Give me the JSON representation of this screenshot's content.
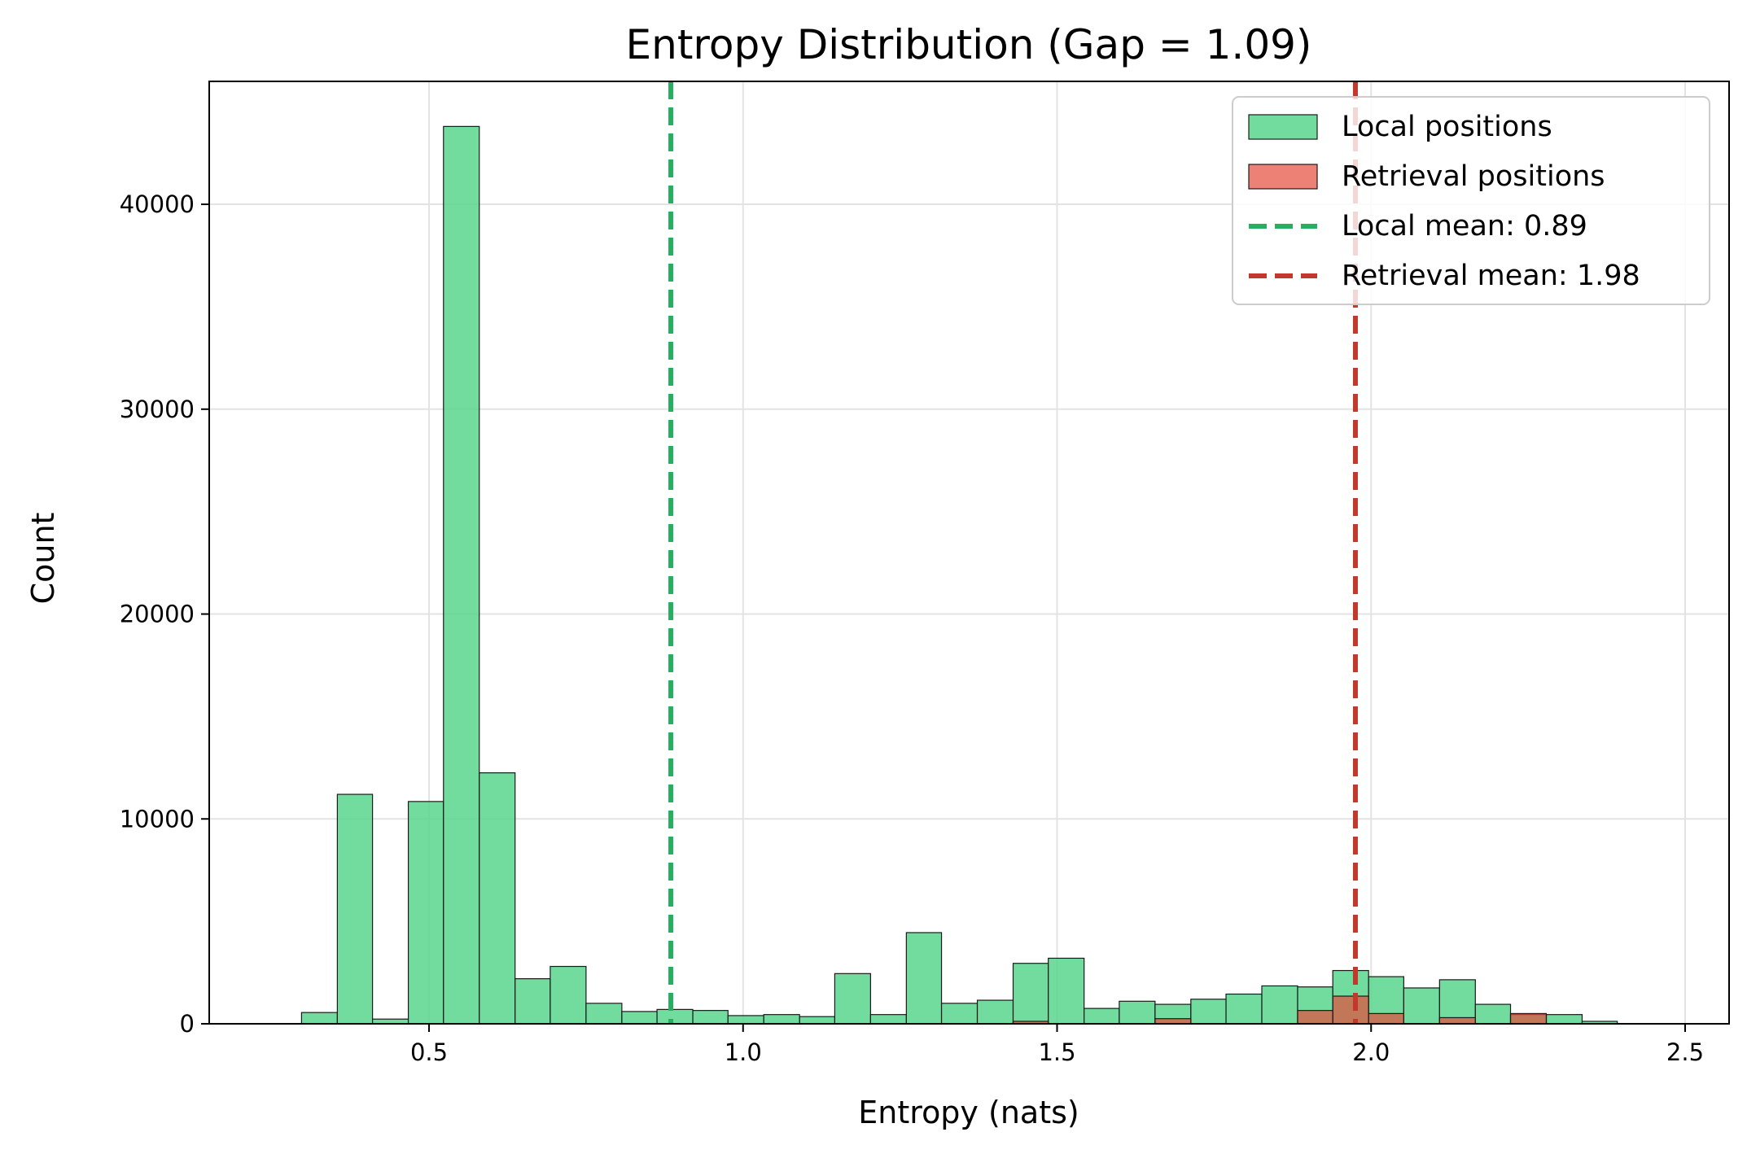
{
  "chart_data": {
    "type": "bar",
    "subtype": "overlaid-histogram",
    "title": "Entropy Distribution (Gap = 1.09)",
    "xlabel": "Entropy (nats)",
    "ylabel": "Count",
    "xlim": [
      0.15,
      2.57
    ],
    "ylim": [
      0,
      46000
    ],
    "xticks": [
      0.5,
      1.0,
      1.5,
      2.0,
      2.5
    ],
    "xtick_labels": [
      "0.5",
      "1.0",
      "1.5",
      "2.0",
      "2.5"
    ],
    "yticks": [
      0,
      10000,
      20000,
      30000,
      40000
    ],
    "ytick_labels": [
      "0",
      "10000",
      "20000",
      "30000",
      "40000"
    ],
    "grid": true,
    "legend_position": "top-right",
    "series": [
      {
        "name": "Local positions",
        "color": "#58d68d",
        "edge_color": "#1a1a1a",
        "bins": [
          {
            "x0": 0.297,
            "x1": 0.354,
            "count": 550
          },
          {
            "x0": 0.354,
            "x1": 0.41,
            "count": 11200
          },
          {
            "x0": 0.41,
            "x1": 0.467,
            "count": 230
          },
          {
            "x0": 0.467,
            "x1": 0.523,
            "count": 10850
          },
          {
            "x0": 0.523,
            "x1": 0.58,
            "count": 43800
          },
          {
            "x0": 0.58,
            "x1": 0.637,
            "count": 12250
          },
          {
            "x0": 0.637,
            "x1": 0.693,
            "count": 2200
          },
          {
            "x0": 0.693,
            "x1": 0.75,
            "count": 2800
          },
          {
            "x0": 0.75,
            "x1": 0.807,
            "count": 1000
          },
          {
            "x0": 0.807,
            "x1": 0.863,
            "count": 600
          },
          {
            "x0": 0.863,
            "x1": 0.92,
            "count": 700
          },
          {
            "x0": 0.92,
            "x1": 0.976,
            "count": 650
          },
          {
            "x0": 0.976,
            "x1": 1.033,
            "count": 400
          },
          {
            "x0": 1.033,
            "x1": 1.09,
            "count": 450
          },
          {
            "x0": 1.09,
            "x1": 1.146,
            "count": 350
          },
          {
            "x0": 1.146,
            "x1": 1.203,
            "count": 2450
          },
          {
            "x0": 1.203,
            "x1": 1.26,
            "count": 450
          },
          {
            "x0": 1.26,
            "x1": 1.316,
            "count": 4450
          },
          {
            "x0": 1.316,
            "x1": 1.373,
            "count": 1000
          },
          {
            "x0": 1.373,
            "x1": 1.43,
            "count": 1150
          },
          {
            "x0": 1.43,
            "x1": 1.486,
            "count": 2950
          },
          {
            "x0": 1.486,
            "x1": 1.543,
            "count": 3200
          },
          {
            "x0": 1.543,
            "x1": 1.599,
            "count": 750
          },
          {
            "x0": 1.599,
            "x1": 1.656,
            "count": 1100
          },
          {
            "x0": 1.656,
            "x1": 1.713,
            "count": 950
          },
          {
            "x0": 1.713,
            "x1": 1.769,
            "count": 1200
          },
          {
            "x0": 1.769,
            "x1": 1.826,
            "count": 1450
          },
          {
            "x0": 1.826,
            "x1": 1.883,
            "count": 1850
          },
          {
            "x0": 1.883,
            "x1": 1.939,
            "count": 1800
          },
          {
            "x0": 1.939,
            "x1": 1.996,
            "count": 2600
          },
          {
            "x0": 1.996,
            "x1": 2.052,
            "count": 2300
          },
          {
            "x0": 2.052,
            "x1": 2.109,
            "count": 1750
          },
          {
            "x0": 2.109,
            "x1": 2.166,
            "count": 2150
          },
          {
            "x0": 2.166,
            "x1": 2.222,
            "count": 950
          },
          {
            "x0": 2.222,
            "x1": 2.279,
            "count": 450
          },
          {
            "x0": 2.279,
            "x1": 2.336,
            "count": 450
          },
          {
            "x0": 2.336,
            "x1": 2.392,
            "count": 120
          }
        ]
      },
      {
        "name": "Retrieval positions",
        "color": "#e74c3c",
        "edge_color": "#1a1a1a",
        "bins": [
          {
            "x0": 1.43,
            "x1": 1.486,
            "count": 120
          },
          {
            "x0": 1.656,
            "x1": 1.713,
            "count": 250
          },
          {
            "x0": 1.883,
            "x1": 1.939,
            "count": 650
          },
          {
            "x0": 1.939,
            "x1": 1.996,
            "count": 1350
          },
          {
            "x0": 1.996,
            "x1": 2.052,
            "count": 500
          },
          {
            "x0": 2.109,
            "x1": 2.166,
            "count": 300
          },
          {
            "x0": 2.222,
            "x1": 2.279,
            "count": 500
          }
        ]
      }
    ],
    "reference_lines": [
      {
        "name": "Local mean: 0.89",
        "x": 0.885,
        "color": "#27ae60",
        "style": "dashed"
      },
      {
        "name": "Retrieval mean: 1.98",
        "x": 1.975,
        "color": "#c0392b",
        "style": "dashed"
      }
    ],
    "legend": [
      {
        "label": "Local positions",
        "kind": "patch",
        "color": "#58d68d"
      },
      {
        "label": "Retrieval positions",
        "kind": "patch",
        "color": "#e74c3c"
      },
      {
        "label": "Local mean: 0.89",
        "kind": "line",
        "color": "#27ae60"
      },
      {
        "label": "Retrieval mean: 1.98",
        "kind": "line",
        "color": "#c0392b"
      }
    ]
  }
}
